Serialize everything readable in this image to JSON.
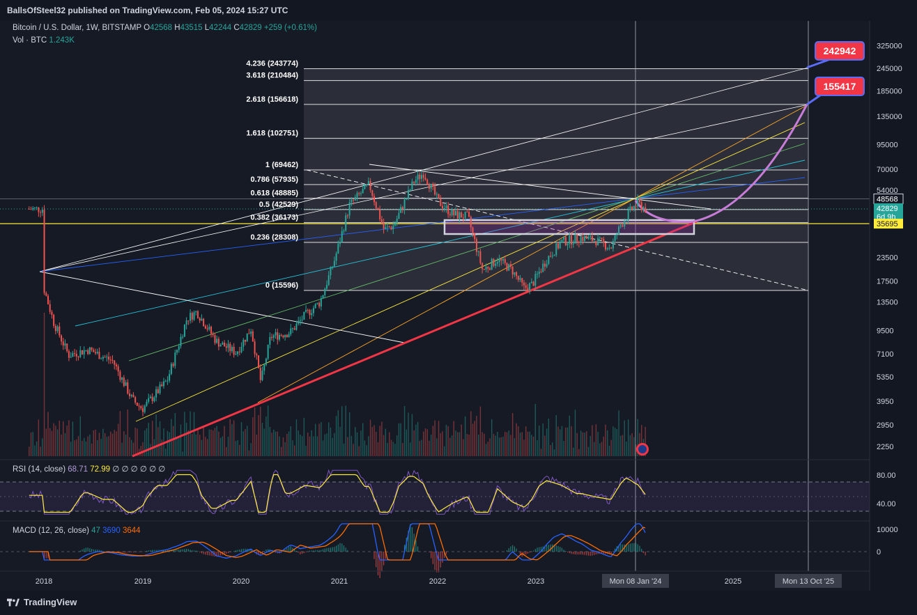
{
  "header": {
    "published": "BallsOfSteel32 published on TradingView.com, Feb 05, 2024 15:27 UTC"
  },
  "legend": {
    "symbol": "Bitcoin / U.S. Dollar, 1W, BITSTAMP",
    "o_label": "O",
    "o": "42568",
    "h_label": "H",
    "h": "43515",
    "l_label": "L",
    "l": "42244",
    "c_label": "C",
    "c": "42829",
    "change": "+259 (+0.61%)",
    "vol_label": "Vol · BTC",
    "vol": "1.243K"
  },
  "currency": "USD",
  "chart_data": {
    "type": "candlestick",
    "title": "Bitcoin / U.S. Dollar, 1W, BITSTAMP",
    "yscale": "log",
    "ylim": [
      2000,
      400000
    ],
    "y_ticks": [
      "325000",
      "245000",
      "185000",
      "135000",
      "95000",
      "70000",
      "54000",
      "48568",
      "42829",
      "35695",
      "23500",
      "17500",
      "13500",
      "9500",
      "7100",
      "5350",
      "3950",
      "2950",
      "2250"
    ],
    "x_ticks": [
      "2018",
      "2019",
      "2020",
      "2021",
      "2022",
      "2023",
      "Mon 08 Jan '24",
      "2025",
      "Mon 13 Oct '25"
    ],
    "price_path": [
      [
        2018.0,
        16000
      ],
      [
        2018.1,
        10500
      ],
      [
        2018.25,
        7000
      ],
      [
        2018.45,
        7500
      ],
      [
        2018.7,
        6500
      ],
      [
        2018.9,
        4000
      ],
      [
        2019.0,
        3600
      ],
      [
        2019.25,
        5100
      ],
      [
        2019.45,
        11000
      ],
      [
        2019.55,
        12000
      ],
      [
        2019.75,
        8300
      ],
      [
        2019.95,
        7200
      ],
      [
        2020.1,
        9700
      ],
      [
        2020.2,
        5000
      ],
      [
        2020.3,
        8800
      ],
      [
        2020.5,
        9300
      ],
      [
        2020.65,
        11500
      ],
      [
        2020.8,
        13500
      ],
      [
        2020.95,
        23000
      ],
      [
        2021.1,
        45000
      ],
      [
        2021.3,
        58000
      ],
      [
        2021.45,
        33000
      ],
      [
        2021.55,
        35000
      ],
      [
        2021.75,
        60000
      ],
      [
        2021.85,
        67000
      ],
      [
        2022.0,
        47000
      ],
      [
        2022.15,
        40000
      ],
      [
        2022.3,
        39000
      ],
      [
        2022.45,
        20000
      ],
      [
        2022.6,
        23000
      ],
      [
        2022.75,
        20000
      ],
      [
        2022.87,
        16000
      ],
      [
        2022.95,
        16800
      ],
      [
        2023.1,
        23000
      ],
      [
        2023.25,
        28500
      ],
      [
        2023.45,
        30000
      ],
      [
        2023.6,
        29000
      ],
      [
        2023.75,
        26500
      ],
      [
        2023.85,
        35000
      ],
      [
        2023.95,
        42000
      ],
      [
        2024.02,
        46000
      ],
      [
        2024.1,
        42829
      ]
    ],
    "fib_levels": [
      {
        "ratio": "4.236",
        "value": 243774
      },
      {
        "ratio": "3.618",
        "value": 210484
      },
      {
        "ratio": "2.618",
        "value": 156618
      },
      {
        "ratio": "1.618",
        "value": 102751
      },
      {
        "ratio": "1",
        "value": 69462
      },
      {
        "ratio": "0.786",
        "value": 57935
      },
      {
        "ratio": "0.618",
        "value": 48885
      },
      {
        "ratio": "0.5",
        "value": 42529
      },
      {
        "ratio": "0.382",
        "value": 36173
      },
      {
        "ratio": "0.236",
        "value": 28308
      },
      {
        "ratio": "0",
        "value": 15596
      }
    ],
    "price_labels": [
      {
        "text": "48568",
        "value": 48568,
        "color": "#131722",
        "text_color": "#ffffff",
        "border": "#d1d4dc"
      },
      {
        "text": "42829",
        "value": 42829,
        "color": "#26a69a",
        "text_color": "#ffffff",
        "sub": "6d 9h"
      },
      {
        "text": "35695",
        "value": 35695,
        "color": "#ffeb3b",
        "text_color": "#131722"
      }
    ],
    "targets": [
      {
        "text": "242942",
        "value": 242942,
        "color": "#f23645"
      },
      {
        "text": "155417",
        "value": 155417,
        "color": "#f23645"
      }
    ]
  },
  "rsi": {
    "label": "RSI (14, close)",
    "value": "68.71",
    "ma": "72.99",
    "extra": "∅ ∅ ∅ ∅ ∅ ∅",
    "ticks": [
      "80.00",
      "40.00"
    ]
  },
  "macd": {
    "label": "MACD (12, 26, close)",
    "hist": "47",
    "macd": "3690",
    "signal": "3644",
    "ticks": [
      "10000",
      "0"
    ]
  },
  "colors": {
    "up": "#26a69a",
    "down": "#ef5350",
    "trend": "#f23645",
    "curve": "#c77dd7",
    "yellow": "#ffeb3b"
  },
  "footer": {
    "brand": "TradingView"
  }
}
